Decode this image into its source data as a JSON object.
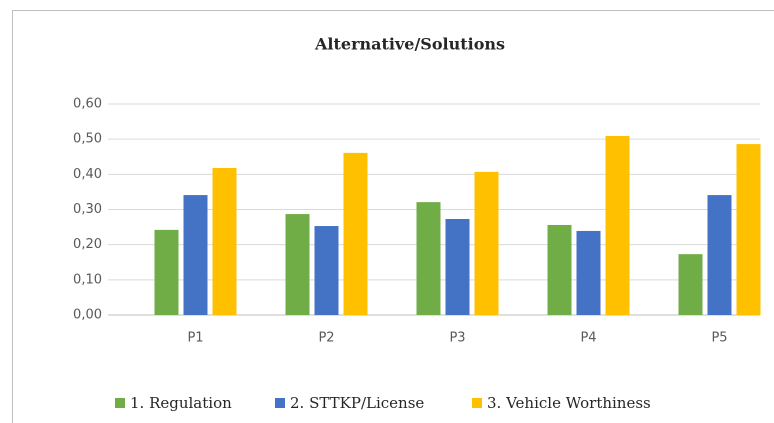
{
  "chart_data": {
    "type": "bar",
    "title": "Alternative/Solutions",
    "categories": [
      "P1",
      "P2",
      "P3",
      "P4",
      "P5"
    ],
    "series": [
      {
        "name": "1. Regulation",
        "color": "#70ad47",
        "values": [
          0.242,
          0.287,
          0.321,
          0.256,
          0.173
        ]
      },
      {
        "name": "2. STTKP/License",
        "color": "#4472c4",
        "values": [
          0.341,
          0.253,
          0.273,
          0.239,
          0.341
        ]
      },
      {
        "name": "3. Vehicle Worthiness",
        "color": "#ffc000",
        "values": [
          0.418,
          0.461,
          0.407,
          0.509,
          0.486
        ]
      }
    ],
    "ylim": [
      0,
      0.6
    ],
    "yticks": [
      {
        "value": 0,
        "label": "0,00"
      },
      {
        "value": 0.1,
        "label": "0,10"
      },
      {
        "value": 0.2,
        "label": "0,20"
      },
      {
        "value": 0.3,
        "label": "0,30"
      },
      {
        "value": 0.4,
        "label": "0,40"
      },
      {
        "value": 0.5,
        "label": "0,50"
      },
      {
        "value": 0.6,
        "label": "0,60"
      }
    ],
    "grid": true,
    "legend": "bottom"
  }
}
